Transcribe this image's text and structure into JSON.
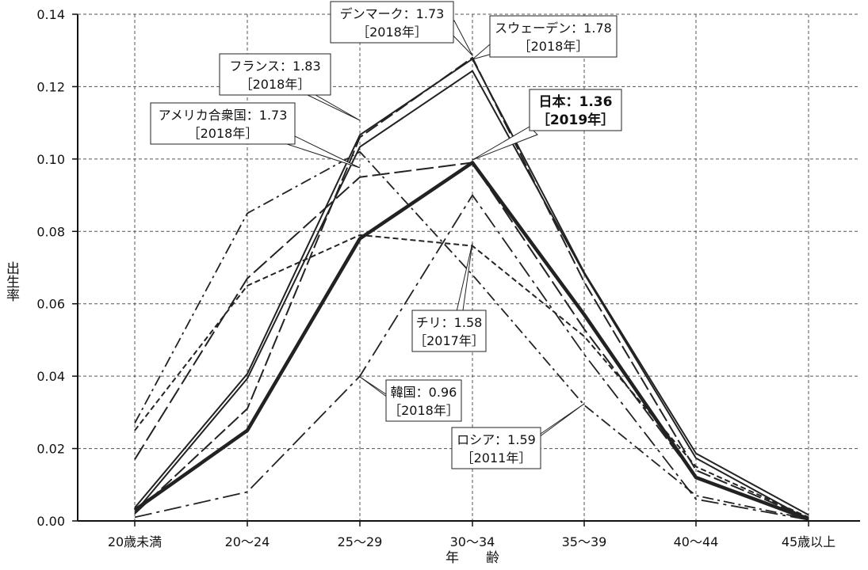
{
  "chart_data": {
    "type": "line",
    "title": "",
    "xlabel": "年　　齢",
    "ylabel": "出生率",
    "categories": [
      "20歳未満",
      "20〜24",
      "25〜29",
      "30〜34",
      "35〜39",
      "40〜44",
      "45歳以上"
    ],
    "ylim": [
      0,
      0.14
    ],
    "yticks": [
      "0.00",
      "0.02",
      "0.04",
      "0.06",
      "0.08",
      "0.10",
      "0.12",
      "0.14"
    ],
    "grid": true,
    "series": [
      {
        "key": "jp",
        "name": "日本：1.36",
        "year": "［2019年］",
        "values": [
          0.003,
          0.025,
          0.078,
          0.099,
          0.057,
          0.012,
          0.0005
        ]
      },
      {
        "key": "dk",
        "name": "デンマーク：1.73",
        "year": "［2018年］",
        "values": [
          0.002,
          0.031,
          0.106,
          0.128,
          0.066,
          0.014,
          0.0008
        ]
      },
      {
        "key": "se",
        "name": "スウェーデン：1.78",
        "year": "［2018年］",
        "values": [
          0.003,
          0.04,
          0.104,
          0.125,
          0.069,
          0.018,
          0.001
        ]
      },
      {
        "key": "fr",
        "name": "フランス：1.83",
        "year": "［2018年］",
        "values": [
          0.003,
          0.04,
          0.106,
          0.127,
          0.068,
          0.018,
          0.001
        ]
      },
      {
        "key": "us",
        "name": "アメリカ合衆国：1.73",
        "year": "［2018年］",
        "values": [
          0.017,
          0.067,
          0.095,
          0.099,
          0.053,
          0.012,
          0.0008
        ]
      },
      {
        "key": "cl",
        "name": "チリ：1.58",
        "year": "［2017年］",
        "values": [
          0.025,
          0.065,
          0.079,
          0.076,
          0.051,
          0.015,
          0.001
        ]
      },
      {
        "key": "kr",
        "name": "韓国：0.96",
        "year": "［2018年］",
        "values": [
          0.001,
          0.008,
          0.04,
          0.09,
          0.046,
          0.006,
          0.0003
        ]
      },
      {
        "key": "ru",
        "name": "ロシア：1.59",
        "year": "［2011年］",
        "values": [
          0.027,
          0.085,
          0.102,
          0.068,
          0.032,
          0.007,
          0.0005
        ]
      }
    ],
    "colors": {
      "line": "#222222",
      "grid": "#555555",
      "box_border": "#222222",
      "box_fill": "#ffffff"
    }
  }
}
